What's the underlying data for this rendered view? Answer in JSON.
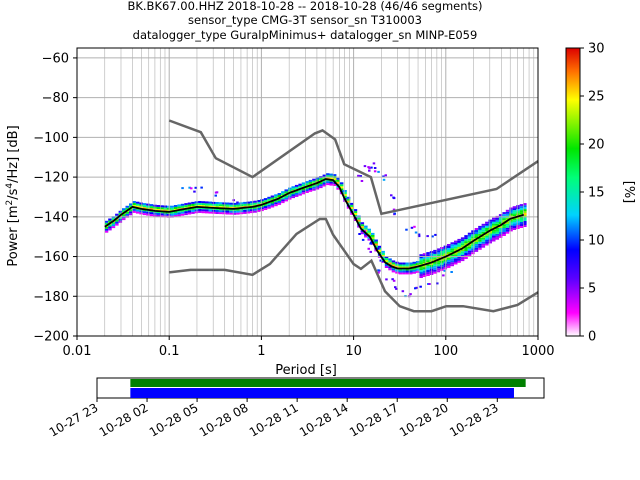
{
  "title_lines": [
    "BK.BK67.00.HHZ   2018-10-28 -- 2018-10-28  (46/46 segments)",
    "sensor_type CMG-3T sensor_sn T310003",
    "datalogger_type GuralpMinimus+ datalogger_sn MINP-E059"
  ],
  "colorbar": {
    "label": "[%]",
    "ticks": [
      "0",
      "5",
      "10",
      "15",
      "20",
      "25",
      "30"
    ],
    "range": [
      0,
      30
    ]
  },
  "timeline": {
    "ticks": [
      "10-27 23",
      "10-28 02",
      "10-28 05",
      "10-28 08",
      "10-28 11",
      "10-28 14",
      "10-28 17",
      "10-28 20",
      "10-28 23"
    ],
    "start_hours": 23,
    "end_hours": 49.8,
    "green_bar": [
      25,
      48.7
    ],
    "blue_bar": [
      25,
      48.0
    ],
    "colors": {
      "green": "#008000",
      "blue": "#0000ff"
    }
  },
  "chart_data": {
    "type": "heatmap",
    "title": "BK.BK67.00.HHZ   2018-10-28 -- 2018-10-28  (46/46 segments)",
    "xlabel": "Period [s]",
    "ylabel": "Power [m²/s⁴/Hz] [dB]",
    "ylabel_parts": {
      "main": "Power [m",
      "sup1": "2",
      "mid": "/s",
      "sup2": "4",
      "tail": "/Hz] [dB]"
    },
    "x_scale": "log",
    "xlim": [
      0.01,
      1000
    ],
    "ylim": [
      -200,
      -55
    ],
    "x_ticks": [
      0.01,
      0.1,
      1,
      10,
      100,
      1000
    ],
    "x_tick_labels": [
      "0.01",
      "0.1",
      "1",
      "10",
      "100",
      "1000"
    ],
    "y_ticks": [
      -200,
      -180,
      -160,
      -140,
      -120,
      -100,
      -80,
      -60
    ],
    "y_tick_labels": [
      "−200",
      "−180",
      "−160",
      "−140",
      "−120",
      "−100",
      "−80",
      "−60"
    ],
    "grid": true,
    "nhnm": {
      "periods": [
        0.1,
        0.22,
        0.32,
        0.8,
        3.8,
        4.6,
        6.3,
        7.9,
        15.4,
        20,
        354.8,
        1000
      ],
      "db": [
        -91.5,
        -97.4,
        -110.5,
        -120,
        -98,
        -96.5,
        -101,
        -113.5,
        -120,
        -138.5,
        -126,
        -112
      ]
    },
    "nlnm": {
      "periods": [
        0.1,
        0.17,
        0.4,
        0.8,
        1.24,
        2.4,
        4.3,
        5,
        6,
        10,
        12,
        15.6,
        21.9,
        31.6,
        45,
        70,
        101,
        154,
        328,
        600,
        1000
      ],
      "db": [
        -168,
        -166.7,
        -166.7,
        -169.2,
        -163.7,
        -148.6,
        -141.1,
        -141.1,
        -149,
        -163.8,
        -166.2,
        -162.1,
        -177.5,
        -185,
        -187.5,
        -187.5,
        -185,
        -185,
        -187.5,
        -184.4,
        -178
      ]
    },
    "mode_line": {
      "periods": [
        0.02,
        0.025,
        0.03,
        0.04,
        0.05,
        0.07,
        0.1,
        0.15,
        0.2,
        0.3,
        0.5,
        0.8,
        1.0,
        1.5,
        2,
        3,
        4,
        5,
        6,
        7,
        8,
        10,
        12,
        15,
        18,
        22,
        26,
        30,
        40,
        50,
        70,
        100,
        150,
        200,
        300,
        400,
        500,
        700
      ],
      "db": [
        -145,
        -142,
        -139,
        -135,
        -136,
        -137,
        -137.5,
        -136,
        -135,
        -135.5,
        -136,
        -135,
        -134,
        -131,
        -128,
        -125,
        -123,
        -121,
        -121.5,
        -125,
        -131,
        -139,
        -146,
        -150,
        -157,
        -163,
        -165,
        -166,
        -166,
        -165,
        -163,
        -160,
        -156,
        -152,
        -147,
        -144,
        -141,
        -139
      ]
    },
    "scatter_upper": {
      "periods": [
        0.15,
        0.2,
        0.3,
        0.5,
        12,
        14,
        16,
        18,
        20,
        25,
        30,
        40,
        50,
        70
      ],
      "db": [
        -125,
        -126,
        -128,
        -132,
        -120,
        -115,
        -114,
        -116,
        -120,
        -130,
        -137,
        -145,
        -148,
        -150
      ]
    },
    "scatter_lower": {
      "periods": [
        12,
        14,
        16,
        18,
        20,
        25,
        30,
        40,
        50,
        70,
        100
      ],
      "db": [
        -148,
        -152,
        -156,
        -162,
        -167,
        -172,
        -176,
        -178,
        -175,
        -172,
        -168
      ]
    },
    "colors": {
      "models": "#666666",
      "mode": "#000000"
    }
  }
}
